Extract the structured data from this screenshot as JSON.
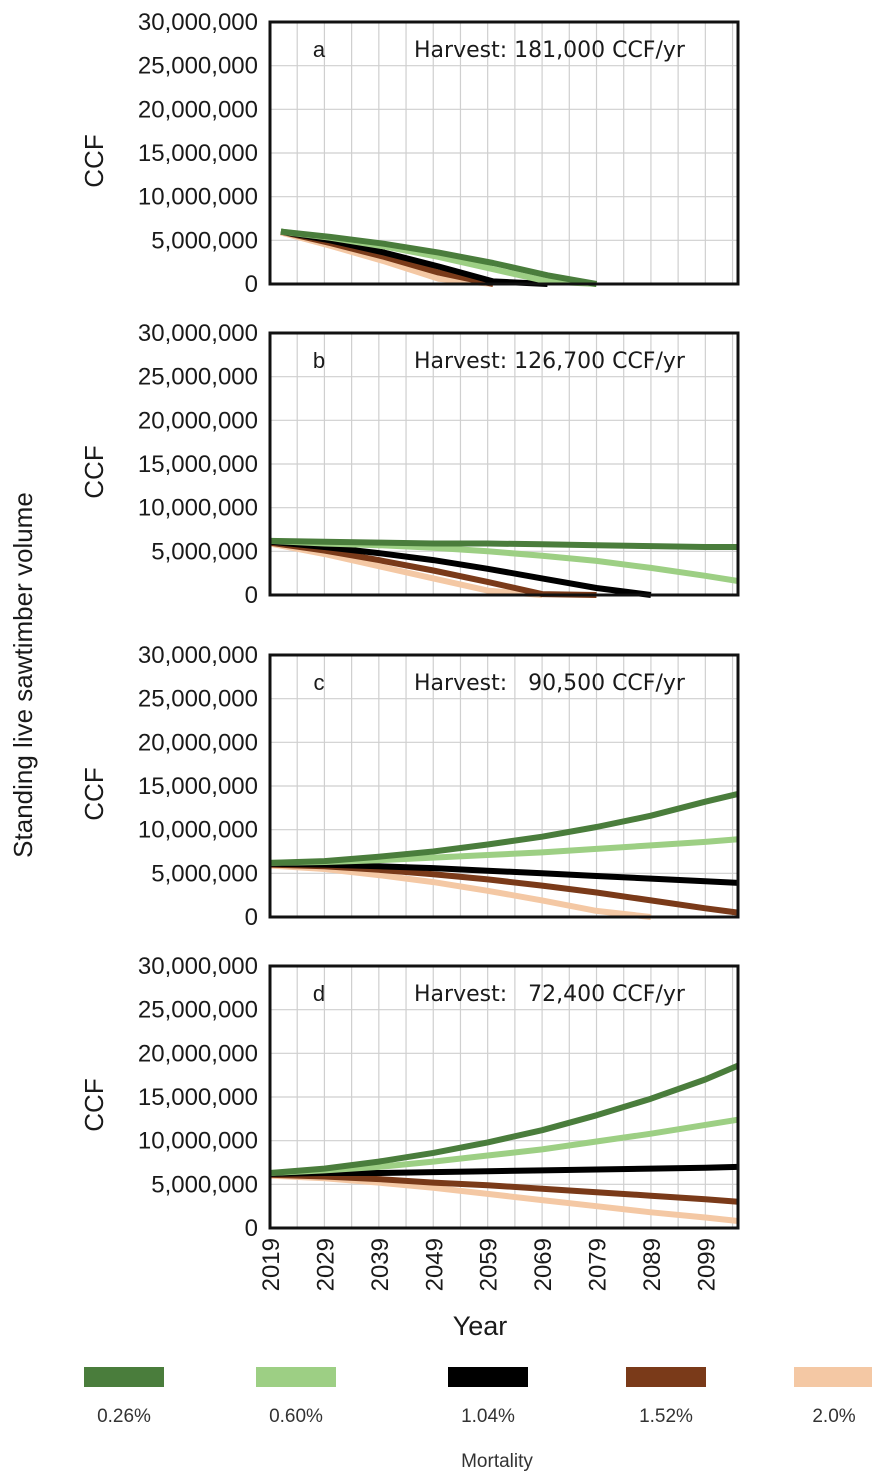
{
  "figure": {
    "y_axis_title": "Standing live sawtimber volume",
    "x_axis_title": "Year",
    "legend_title": "Mortality"
  },
  "chart_data": [
    {
      "type": "line",
      "panel": "a",
      "annotation": "Harvest: 181,000 CCF/yr",
      "ylabel": "CCF",
      "xlabel": "",
      "ylim": [
        0,
        30000000
      ],
      "xlim": [
        2019,
        2105
      ],
      "yticks": [
        "0",
        "5,000,000",
        "10,000,000",
        "15,000,000",
        "20,000,000",
        "25,000,000",
        "30,000,000"
      ],
      "grid": true,
      "x": [
        2021,
        2030,
        2040,
        2050,
        2060,
        2070,
        2079
      ],
      "series": [
        {
          "name": "0.26%",
          "values": [
            6000000,
            5400000,
            4600000,
            3600000,
            2400000,
            1000000,
            0
          ]
        },
        {
          "name": "0.60%",
          "values": [
            6000000,
            5300000,
            4300000,
            3100000,
            1700000,
            300000,
            0
          ]
        },
        {
          "name": "1.04%",
          "values": [
            6000000,
            5000000,
            3600000,
            2000000,
            300000,
            0,
            0
          ]
        },
        {
          "name": "1.52%",
          "values": [
            6000000,
            4700000,
            3100000,
            1300000,
            0,
            0,
            0
          ]
        },
        {
          "name": "2.0%",
          "values": [
            5900000,
            4400000,
            2600000,
            600000,
            0,
            0,
            0
          ]
        }
      ]
    },
    {
      "type": "line",
      "panel": "b",
      "annotation": "Harvest: 126,700 CCF/yr",
      "ylabel": "CCF",
      "xlabel": "",
      "ylim": [
        0,
        30000000
      ],
      "xlim": [
        2019,
        2105
      ],
      "yticks": [
        "0",
        "5,000,000",
        "10,000,000",
        "15,000,000",
        "20,000,000",
        "25,000,000",
        "30,000,000"
      ],
      "grid": true,
      "x": [
        2019,
        2029,
        2039,
        2049,
        2059,
        2069,
        2079,
        2089,
        2099,
        2105
      ],
      "series": [
        {
          "name": "0.26%",
          "values": [
            6200000,
            6100000,
            6000000,
            5900000,
            5900000,
            5800000,
            5700000,
            5600000,
            5500000,
            5500000
          ]
        },
        {
          "name": "0.60%",
          "values": [
            6200000,
            5900000,
            5700000,
            5400000,
            5000000,
            4500000,
            3900000,
            3100000,
            2200000,
            1600000
          ]
        },
        {
          "name": "1.04%",
          "values": [
            6100000,
            5500000,
            4800000,
            4000000,
            3000000,
            1900000,
            800000,
            0,
            0,
            0
          ]
        },
        {
          "name": "1.52%",
          "values": [
            6000000,
            5100000,
            4000000,
            2800000,
            1500000,
            100000,
            0,
            0,
            0,
            0
          ]
        },
        {
          "name": "2.0%",
          "values": [
            5900000,
            4700000,
            3300000,
            1900000,
            500000,
            0,
            0,
            0,
            0,
            0
          ]
        }
      ]
    },
    {
      "type": "line",
      "panel": "c",
      "annotation": "Harvest:   90,500 CCF/yr",
      "ylabel": "CCF",
      "xlabel": "",
      "ylim": [
        0,
        30000000
      ],
      "xlim": [
        2019,
        2105
      ],
      "yticks": [
        "0",
        "5,000,000",
        "10,000,000",
        "15,000,000",
        "20,000,000",
        "25,000,000",
        "30,000,000"
      ],
      "grid": true,
      "x": [
        2019,
        2029,
        2039,
        2049,
        2059,
        2069,
        2079,
        2089,
        2099,
        2105
      ],
      "series": [
        {
          "name": "0.26%",
          "values": [
            6200000,
            6400000,
            6900000,
            7500000,
            8300000,
            9200000,
            10300000,
            11600000,
            13200000,
            14100000
          ]
        },
        {
          "name": "0.60%",
          "values": [
            6200000,
            6300000,
            6500000,
            6800000,
            7100000,
            7400000,
            7800000,
            8200000,
            8600000,
            8900000
          ]
        },
        {
          "name": "1.04%",
          "values": [
            6100000,
            6000000,
            5800000,
            5600000,
            5300000,
            5000000,
            4700000,
            4400000,
            4100000,
            3900000
          ]
        },
        {
          "name": "1.52%",
          "values": [
            6000000,
            5800000,
            5400000,
            4900000,
            4300000,
            3600000,
            2800000,
            1900000,
            1000000,
            500000
          ]
        },
        {
          "name": "2.0%",
          "values": [
            5900000,
            5500000,
            4800000,
            4000000,
            3000000,
            1900000,
            700000,
            0,
            0,
            0
          ]
        }
      ]
    },
    {
      "type": "line",
      "panel": "d",
      "annotation": "Harvest:   72,400 CCF/yr",
      "ylabel": "CCF",
      "xlabel": "Year",
      "ylim": [
        0,
        30000000
      ],
      "xlim": [
        2019,
        2105
      ],
      "yticks": [
        "0",
        "5,000,000",
        "10,000,000",
        "15,000,000",
        "20,000,000",
        "25,000,000",
        "30,000,000"
      ],
      "xticks": [
        "2019",
        "2029",
        "2039",
        "2049",
        "2059",
        "2069",
        "2079",
        "2089",
        "2099"
      ],
      "grid": true,
      "x": [
        2019,
        2029,
        2039,
        2049,
        2059,
        2069,
        2079,
        2089,
        2099,
        2105
      ],
      "series": [
        {
          "name": "0.26%",
          "values": [
            6300000,
            6800000,
            7600000,
            8600000,
            9800000,
            11200000,
            12900000,
            14800000,
            17000000,
            18600000
          ]
        },
        {
          "name": "0.60%",
          "values": [
            6300000,
            6600000,
            7000000,
            7600000,
            8300000,
            9000000,
            9900000,
            10800000,
            11800000,
            12400000
          ]
        },
        {
          "name": "1.04%",
          "values": [
            6200000,
            6300000,
            6300000,
            6400000,
            6500000,
            6600000,
            6700000,
            6800000,
            6900000,
            7000000
          ]
        },
        {
          "name": "1.52%",
          "values": [
            6100000,
            5900000,
            5600000,
            5200000,
            4900000,
            4500000,
            4100000,
            3700000,
            3300000,
            3000000
          ]
        },
        {
          "name": "2.0%",
          "values": [
            6000000,
            5700000,
            5200000,
            4600000,
            3900000,
            3200000,
            2500000,
            1800000,
            1200000,
            800000
          ]
        }
      ]
    }
  ],
  "legend": {
    "title": "Mortality",
    "items": [
      {
        "label": "0.26%",
        "color": "#4a7d3c"
      },
      {
        "label": "0.60%",
        "color": "#9dcf84"
      },
      {
        "label": "1.04%",
        "color": "#000000"
      },
      {
        "label": "1.52%",
        "color": "#7a3a19"
      },
      {
        "label": "2.0%",
        "color": "#f4c8a4"
      }
    ]
  }
}
